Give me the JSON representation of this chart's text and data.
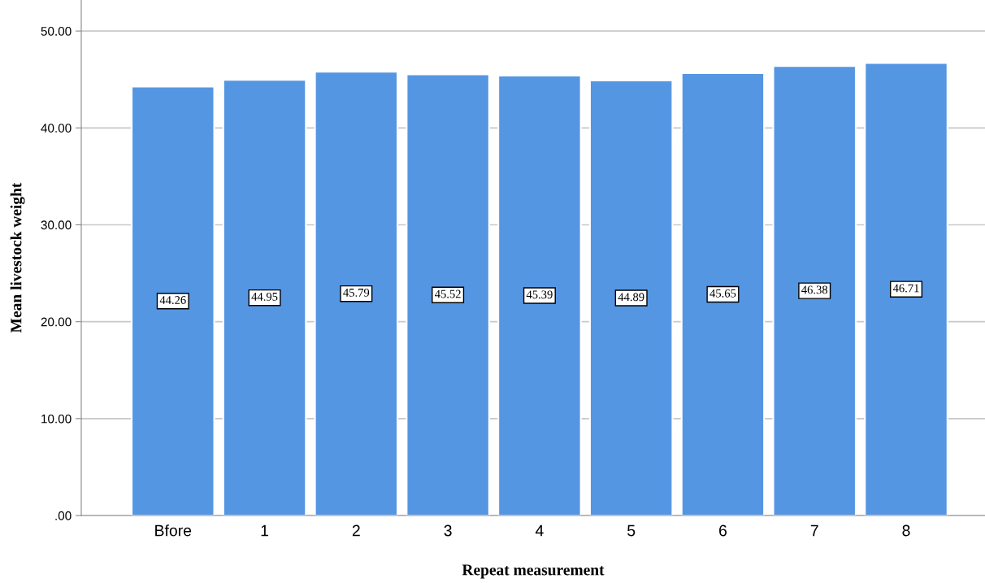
{
  "chart_data": {
    "type": "bar",
    "xlabel": "Repeat measurement",
    "ylabel": "Mean livestock weight",
    "categories": [
      "Bfore",
      "1",
      "2",
      "3",
      "4",
      "5",
      "6",
      "7",
      "8"
    ],
    "values": [
      44.26,
      44.95,
      45.79,
      45.52,
      45.39,
      44.89,
      45.65,
      46.38,
      46.71
    ],
    "color": "#5596e3",
    "data_labels": true,
    "grid": "y",
    "ylim": [
      0,
      53.2
    ],
    "yticks": [
      {
        "value": 0,
        "label": ".00"
      },
      {
        "value": 10,
        "label": "10.00"
      },
      {
        "value": 20,
        "label": "20.00"
      },
      {
        "value": 30,
        "label": "30.00"
      },
      {
        "value": 40,
        "label": "40.00"
      },
      {
        "value": 50,
        "label": "50.00"
      }
    ]
  }
}
